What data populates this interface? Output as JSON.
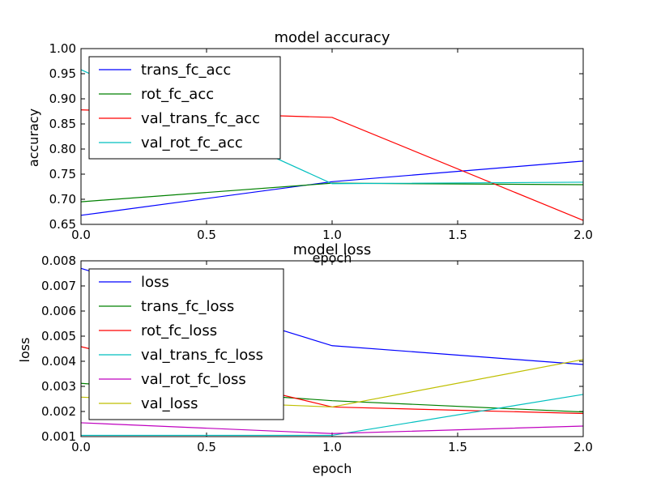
{
  "chart_data": [
    {
      "type": "line",
      "title": "model accuracy",
      "xlabel": "epoch",
      "ylabel": "accuracy",
      "xlim": [
        0,
        2
      ],
      "ylim": [
        0.65,
        1.0
      ],
      "xticks": [
        0.0,
        0.5,
        1.0,
        1.5,
        2.0
      ],
      "xtick_labels": [
        "0.0",
        "0.5",
        "1.0",
        "1.5",
        "2.0"
      ],
      "yticks": [
        0.65,
        0.7,
        0.75,
        0.8,
        0.85,
        0.9,
        0.95,
        1.0
      ],
      "ytick_labels": [
        "0.65",
        "0.70",
        "0.75",
        "0.80",
        "0.85",
        "0.90",
        "0.95",
        "1.00"
      ],
      "legend_position": "top-left",
      "x": [
        0,
        1,
        2
      ],
      "series": [
        {
          "name": "trans_fc_acc",
          "color": "#0000ff",
          "values": [
            0.668,
            0.735,
            0.776
          ]
        },
        {
          "name": "rot_fc_acc",
          "color": "#008000",
          "values": [
            0.695,
            0.732,
            0.729
          ]
        },
        {
          "name": "val_trans_fc_acc",
          "color": "#ff0000",
          "values": [
            0.878,
            0.863,
            0.658
          ]
        },
        {
          "name": "val_rot_fc_acc",
          "color": "#00bfbf",
          "values": [
            0.958,
            0.731,
            0.734
          ]
        }
      ]
    },
    {
      "type": "line",
      "title": "model loss",
      "xlabel": "epoch",
      "ylabel": "loss",
      "xlim": [
        0,
        2
      ],
      "ylim": [
        0.001,
        0.008
      ],
      "xticks": [
        0.0,
        0.5,
        1.0,
        1.5,
        2.0
      ],
      "xtick_labels": [
        "0.0",
        "0.5",
        "1.0",
        "1.5",
        "2.0"
      ],
      "yticks": [
        0.001,
        0.002,
        0.003,
        0.004,
        0.005,
        0.006,
        0.007,
        0.008
      ],
      "ytick_labels": [
        "0.001",
        "0.002",
        "0.003",
        "0.004",
        "0.005",
        "0.006",
        "0.007",
        "0.008"
      ],
      "legend_position": "top-left",
      "x": [
        0,
        1,
        2
      ],
      "series": [
        {
          "name": "loss",
          "color": "#0000ff",
          "values": [
            0.0077,
            0.00462,
            0.00387
          ]
        },
        {
          "name": "trans_fc_loss",
          "color": "#008000",
          "values": [
            0.00312,
            0.00243,
            0.00198
          ]
        },
        {
          "name": "rot_fc_loss",
          "color": "#ff0000",
          "values": [
            0.00458,
            0.00218,
            0.00192
          ]
        },
        {
          "name": "val_trans_fc_loss",
          "color": "#00bfbf",
          "values": [
            0.00105,
            0.00105,
            0.00268
          ]
        },
        {
          "name": "val_rot_fc_loss",
          "color": "#bf00bf",
          "values": [
            0.00155,
            0.00112,
            0.00142
          ]
        },
        {
          "name": "val_loss",
          "color": "#bfbf00",
          "values": [
            0.00257,
            0.00218,
            0.00407
          ]
        }
      ]
    }
  ]
}
